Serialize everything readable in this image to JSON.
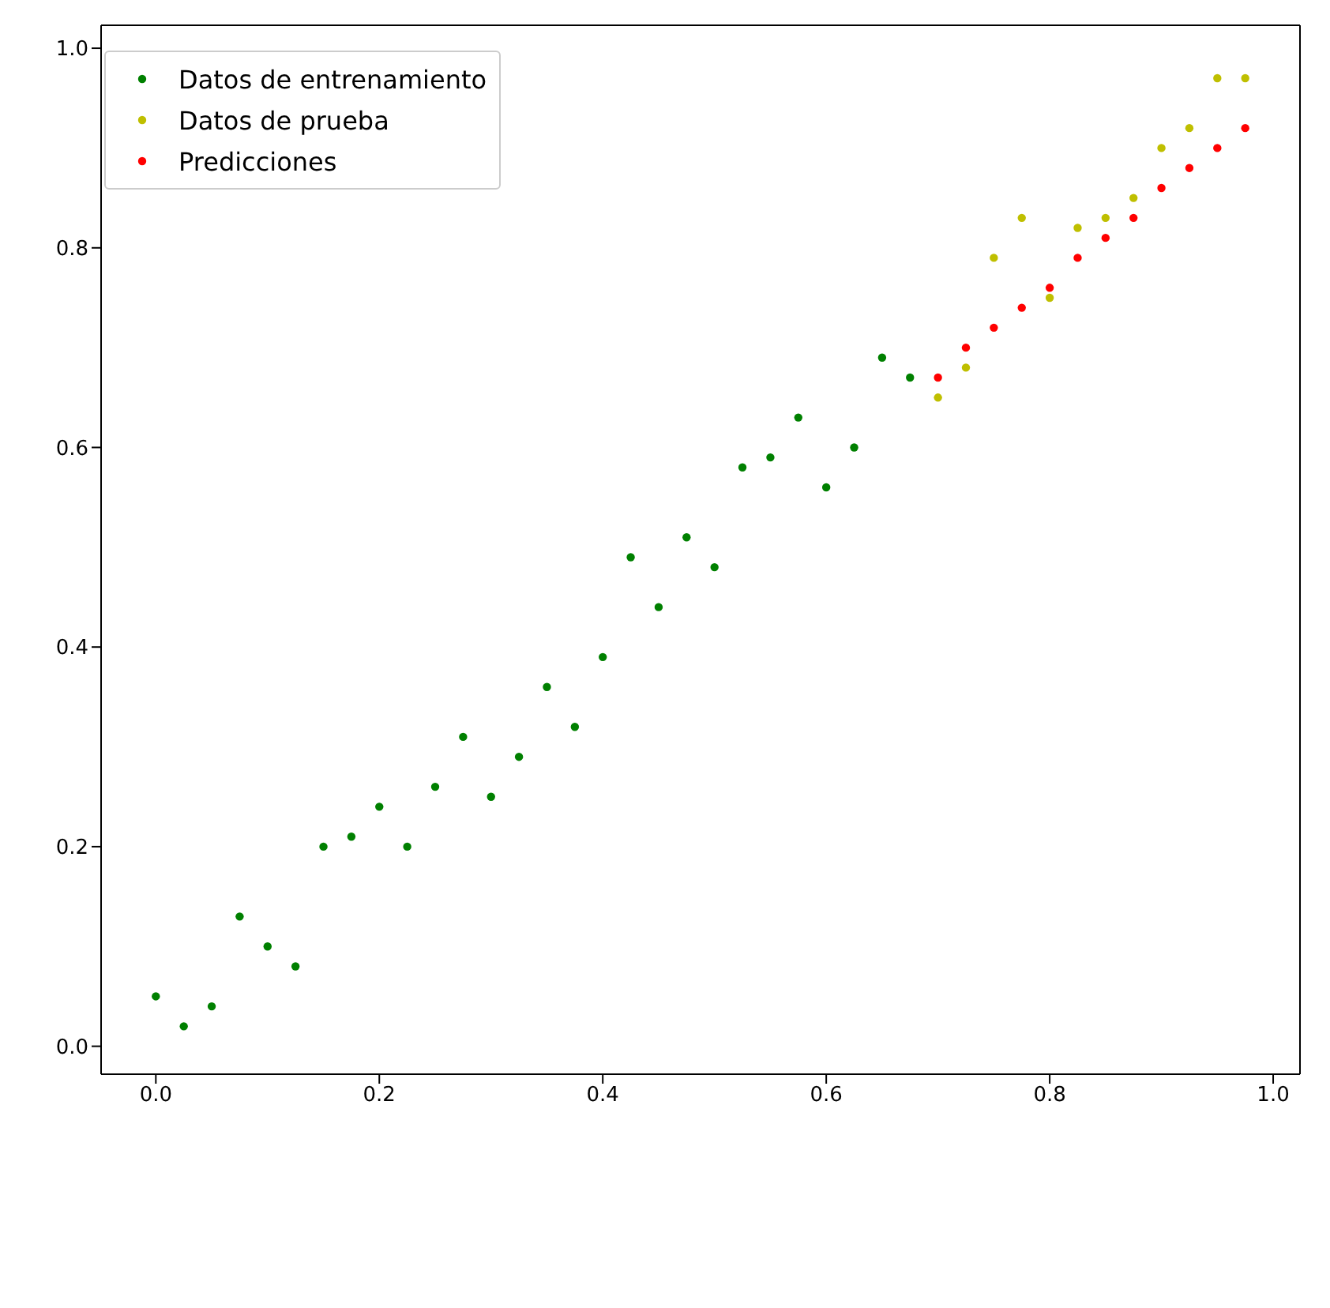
{
  "chart_data": {
    "type": "scatter",
    "marker": "circle",
    "grid": false,
    "legend": "top left",
    "xlim": [
      -0.049,
      1.024
    ],
    "ylim": [
      -0.028,
      1.023
    ],
    "xticks": [
      {
        "value": 0,
        "label": "0.0"
      },
      {
        "value": 0.2,
        "label": "0.2"
      },
      {
        "value": 0.4,
        "label": "0.4"
      },
      {
        "value": 0.6,
        "label": "0.6"
      },
      {
        "value": 0.8,
        "label": "0.8"
      },
      {
        "value": 1,
        "label": "1.0"
      }
    ],
    "yticks": [
      {
        "value": 0,
        "label": "0.0"
      },
      {
        "value": 0.2,
        "label": "0.2"
      },
      {
        "value": 0.4,
        "label": "0.4"
      },
      {
        "value": 0.6,
        "label": "0.6"
      },
      {
        "value": 0.8,
        "label": "0.8"
      },
      {
        "value": 1,
        "label": "1.0"
      }
    ],
    "series": [
      {
        "name": "Datos de entrenamiento",
        "color": "#008000",
        "x": [
          0,
          0.025,
          0.05,
          0.075,
          0.1,
          0.125,
          0.15,
          0.175,
          0.2,
          0.225,
          0.25,
          0.275,
          0.3,
          0.325,
          0.35,
          0.375,
          0.4,
          0.425,
          0.45,
          0.475,
          0.5,
          0.525,
          0.55,
          0.575,
          0.6,
          0.625,
          0.65,
          0.675
        ],
        "values": [
          0.05,
          0.02,
          0.04,
          0.13,
          0.1,
          0.08,
          0.2,
          0.21,
          0.24,
          0.2,
          0.26,
          0.31,
          0.25,
          0.29,
          0.36,
          0.32,
          0.39,
          0.49,
          0.44,
          0.51,
          0.48,
          0.58,
          0.59,
          0.63,
          0.56,
          0.6,
          0.69,
          0.67
        ]
      },
      {
        "name": "Datos de prueba",
        "color": "#bfbf00",
        "x": [
          0.7,
          0.725,
          0.75,
          0.775,
          0.8,
          0.825,
          0.85,
          0.875,
          0.9,
          0.925,
          0.95,
          0.975
        ],
        "values": [
          0.65,
          0.68,
          0.79,
          0.83,
          0.75,
          0.82,
          0.83,
          0.85,
          0.9,
          0.92,
          0.97,
          0.97
        ]
      },
      {
        "name": "Predicciones",
        "color": "#ff0000",
        "x": [
          0.7,
          0.725,
          0.75,
          0.775,
          0.8,
          0.825,
          0.85,
          0.875,
          0.9,
          0.925,
          0.95,
          0.975
        ],
        "values": [
          0.67,
          0.7,
          0.72,
          0.74,
          0.76,
          0.79,
          0.81,
          0.83,
          0.86,
          0.88,
          0.9,
          0.92
        ]
      }
    ]
  }
}
